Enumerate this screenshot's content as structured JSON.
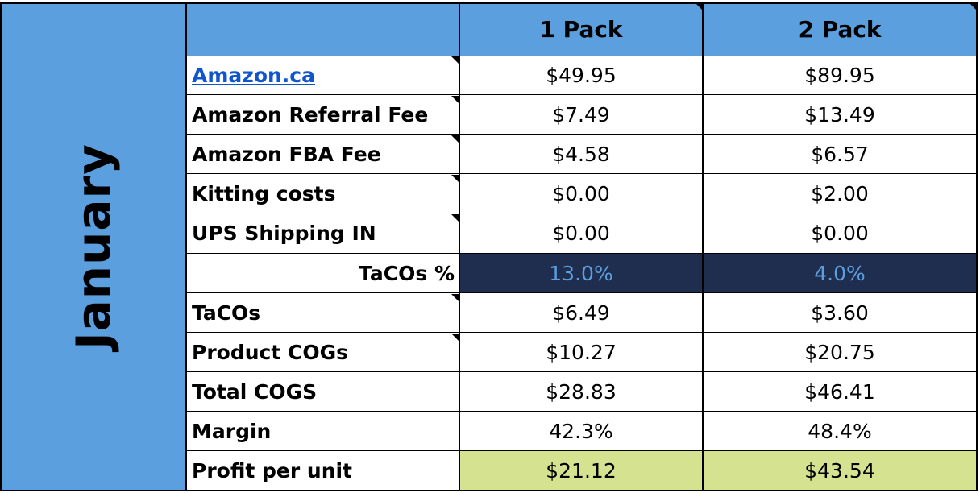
{
  "month": "January",
  "columns": [
    "",
    "1 Pack",
    "2 Pack"
  ],
  "rows": [
    {
      "label": "Amazon.ca",
      "link": true,
      "values": [
        "$49.95",
        "$89.95"
      ]
    },
    {
      "label": "Amazon Referral Fee",
      "values": [
        "$7.49",
        "$13.49"
      ]
    },
    {
      "label": "Amazon FBA Fee",
      "values": [
        "$4.58",
        "$6.57"
      ]
    },
    {
      "label": "Kitting costs",
      "values": [
        "$0.00",
        "$2.00"
      ]
    },
    {
      "label": "UPS Shipping IN",
      "values": [
        "$0.00",
        "$0.00"
      ]
    },
    {
      "label": "TaCOs %",
      "align": "right",
      "fill": "navy",
      "values": [
        "13.0%",
        "4.0%"
      ]
    },
    {
      "label": "TaCOs",
      "values": [
        "$6.49",
        "$3.60"
      ]
    },
    {
      "label": "Product COGs",
      "values": [
        "$10.27",
        "$20.75"
      ]
    },
    {
      "label": "Total COGS",
      "values": [
        "$28.83",
        "$46.41"
      ]
    },
    {
      "label": "Margin",
      "values": [
        "42.3%",
        "48.4%"
      ]
    },
    {
      "label": "Profit per unit",
      "fill": "green",
      "values": [
        "$21.12",
        "$43.54"
      ]
    }
  ],
  "colors": {
    "header_blue": "#5b9fdf",
    "tacos_navy": "#1f2d4e",
    "tacos_text": "#5b9fdf",
    "profit_green": "#d5e28f",
    "link_blue": "#1155cc"
  }
}
